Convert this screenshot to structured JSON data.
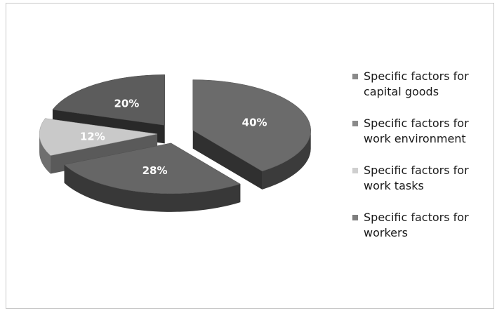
{
  "chart_data": {
    "type": "pie",
    "title": "",
    "slices": [
      {
        "label": "Specific factors for capital goods",
        "value": 40,
        "display": "40%",
        "color": "#6b6b6b"
      },
      {
        "label": "Specific factors for work environment",
        "value": 28,
        "display": "28%",
        "color": "#666666"
      },
      {
        "label": "Specific factors for work tasks",
        "value": 12,
        "display": "12%",
        "color": "#c9c9c9"
      },
      {
        "label": "Specific factors for workers",
        "value": 20,
        "display": "20%",
        "color": "#5c5c5c"
      }
    ],
    "legend": {
      "position": "right"
    }
  },
  "legend": {
    "items": [
      {
        "line1": "Specific factors for",
        "line2": "capital goods",
        "color": "#8a8a8a"
      },
      {
        "line1": "Specific factors for",
        "line2": "work environment",
        "color": "#8a8a8a"
      },
      {
        "line1": "Specific factors for",
        "line2": "work tasks",
        "color": "#cfcfcf"
      },
      {
        "line1": "Specific factors for",
        "line2": "workers",
        "color": "#7e7e7e"
      }
    ]
  }
}
